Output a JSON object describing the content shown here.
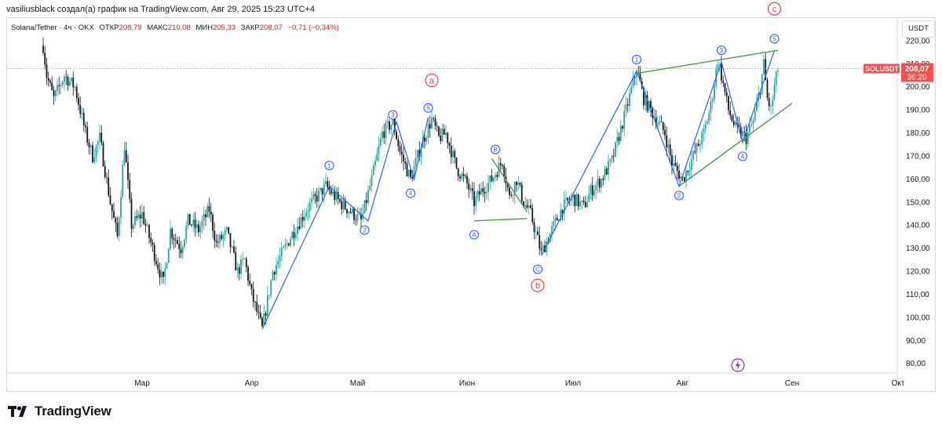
{
  "header": {
    "caption": "vasiliusblack создал(а) график на TradingView.com, Авг 29, 2025 15:23 UTC+4"
  },
  "legend": {
    "symbol": "Solana/Tether · 4ч · OKX",
    "open_label": "ОТКР",
    "open": "208,79",
    "high_label": "МАКС",
    "high": "210,08",
    "low_label": "МИН",
    "low": "205,33",
    "close_label": "ЗАКР",
    "close": "208,07",
    "change": "−0,71 (−0,34%)"
  },
  "currency": "USDT",
  "price_tag": {
    "symbol": "SOLUSDT",
    "price": "208,07",
    "countdown": "36:20"
  },
  "brand": {
    "name": "TradingView"
  },
  "colors": {
    "up": "#26a69a",
    "down": "#131722",
    "wave": "#2962ff",
    "triangle": "#43a047",
    "major": "#e53935",
    "last_price": "#e57373",
    "flash": "#9c27b0"
  },
  "chart_data": {
    "type": "candlestick",
    "title": "Solana/Tether · 4ч · OKX",
    "y_axis": {
      "range": [
        76,
        230
      ],
      "ticks": [
        220,
        210,
        200,
        190,
        180,
        170,
        160,
        150,
        140,
        130,
        120,
        110,
        100,
        90,
        80
      ],
      "tick_labels": [
        "220,00",
        "210,00",
        "200,00",
        "190,00",
        "180,00",
        "170,00",
        "160,00",
        "150,00",
        "140,00",
        "130,00",
        "120,00",
        "110,00",
        "100,00",
        "90,00",
        "80,00"
      ]
    },
    "x_axis": {
      "labels": [
        "Мар",
        "Апр",
        "Май",
        "Июн",
        "Июл",
        "Авг",
        "Сен",
        "Окт"
      ],
      "label_days": [
        28,
        59,
        89,
        120,
        150,
        181,
        212,
        242
      ]
    },
    "last_price": 208.07,
    "price_path": [
      [
        0,
        218
      ],
      [
        1,
        205
      ],
      [
        3,
        195
      ],
      [
        6,
        205
      ],
      [
        9,
        200
      ],
      [
        12,
        180
      ],
      [
        14,
        170
      ],
      [
        16,
        178
      ],
      [
        19,
        150
      ],
      [
        21,
        135
      ],
      [
        23,
        175
      ],
      [
        25,
        140
      ],
      [
        28,
        145
      ],
      [
        31,
        130
      ],
      [
        34,
        115
      ],
      [
        36,
        138
      ],
      [
        39,
        130
      ],
      [
        41,
        142
      ],
      [
        44,
        138
      ],
      [
        47,
        147
      ],
      [
        49,
        132
      ],
      [
        52,
        137
      ],
      [
        55,
        120
      ],
      [
        57,
        125
      ],
      [
        59,
        110
      ],
      [
        62,
        95
      ],
      [
        65,
        120
      ],
      [
        70,
        135
      ],
      [
        75,
        148
      ],
      [
        80,
        157
      ],
      [
        84,
        150
      ],
      [
        90,
        142
      ],
      [
        93,
        160
      ],
      [
        96,
        180
      ],
      [
        99,
        185
      ],
      [
        101,
        172
      ],
      [
        104,
        160
      ],
      [
        107,
        175
      ],
      [
        110,
        186
      ],
      [
        112,
        178
      ],
      [
        114,
        180
      ],
      [
        117,
        165
      ],
      [
        120,
        158
      ],
      [
        122,
        150
      ],
      [
        124,
        155
      ],
      [
        127,
        160
      ],
      [
        130,
        168
      ],
      [
        132,
        152
      ],
      [
        134,
        160
      ],
      [
        136,
        150
      ],
      [
        138,
        145
      ],
      [
        141,
        128
      ],
      [
        144,
        138
      ],
      [
        147,
        148
      ],
      [
        150,
        152
      ],
      [
        153,
        148
      ],
      [
        155,
        155
      ],
      [
        158,
        160
      ],
      [
        161,
        168
      ],
      [
        165,
        190
      ],
      [
        168,
        208
      ],
      [
        170,
        195
      ],
      [
        172,
        190
      ],
      [
        174,
        185
      ],
      [
        176,
        180
      ],
      [
        178,
        167
      ],
      [
        181,
        160
      ],
      [
        184,
        170
      ],
      [
        187,
        180
      ],
      [
        189,
        192
      ],
      [
        191,
        212
      ],
      [
        192,
        205
      ],
      [
        194,
        190
      ],
      [
        196,
        182
      ],
      [
        199,
        178
      ],
      [
        201,
        185
      ],
      [
        203,
        200
      ],
      [
        204,
        210
      ],
      [
        205,
        195
      ],
      [
        206,
        190
      ],
      [
        207,
        200
      ],
      [
        208,
        208
      ]
    ],
    "wave_labels": [
      {
        "text": "1",
        "day": 81,
        "price": 166,
        "kind": "minor"
      },
      {
        "text": "2",
        "day": 91,
        "price": 138,
        "kind": "minor"
      },
      {
        "text": "3",
        "day": 99,
        "price": 188,
        "kind": "minor"
      },
      {
        "text": "4",
        "day": 104,
        "price": 154,
        "kind": "minor"
      },
      {
        "text": "5",
        "day": 109,
        "price": 191,
        "kind": "minor"
      },
      {
        "text": "A",
        "day": 122,
        "price": 136,
        "kind": "minor"
      },
      {
        "text": "B",
        "day": 128,
        "price": 173,
        "kind": "minor"
      },
      {
        "text": "C",
        "day": 140,
        "price": 121,
        "kind": "minor"
      },
      {
        "text": "1",
        "day": 168,
        "price": 212,
        "kind": "minor"
      },
      {
        "text": "2",
        "day": 180,
        "price": 153,
        "kind": "minor"
      },
      {
        "text": "3",
        "day": 192,
        "price": 216,
        "kind": "minor"
      },
      {
        "text": "4",
        "day": 198,
        "price": 170,
        "kind": "minor"
      },
      {
        "text": "5",
        "day": 207,
        "price": 221,
        "kind": "minor"
      },
      {
        "text": "a",
        "day": 110,
        "price": 203,
        "kind": "major"
      },
      {
        "text": "b",
        "day": 140,
        "price": 114,
        "kind": "major"
      },
      {
        "text": "c",
        "day": 207,
        "price": 234,
        "kind": "major"
      }
    ],
    "blue_wave_lines": [
      [
        [
          62,
          95
        ],
        [
          81,
          157
        ],
        [
          92,
          142
        ],
        [
          100,
          185
        ],
        [
          105,
          160
        ],
        [
          109,
          187
        ]
      ],
      [
        [
          141,
          127
        ],
        [
          168,
          207
        ],
        [
          180,
          157
        ],
        [
          192,
          211
        ],
        [
          198,
          176
        ],
        [
          207,
          216
        ]
      ]
    ],
    "green_lines": [
      [
        [
          127,
          169
        ],
        [
          137,
          146
        ]
      ],
      [
        [
          122,
          142
        ],
        [
          137,
          143
        ]
      ],
      [
        [
          168,
          206
        ],
        [
          208,
          216
        ]
      ],
      [
        [
          180,
          157
        ],
        [
          212,
          193
        ]
      ]
    ]
  }
}
